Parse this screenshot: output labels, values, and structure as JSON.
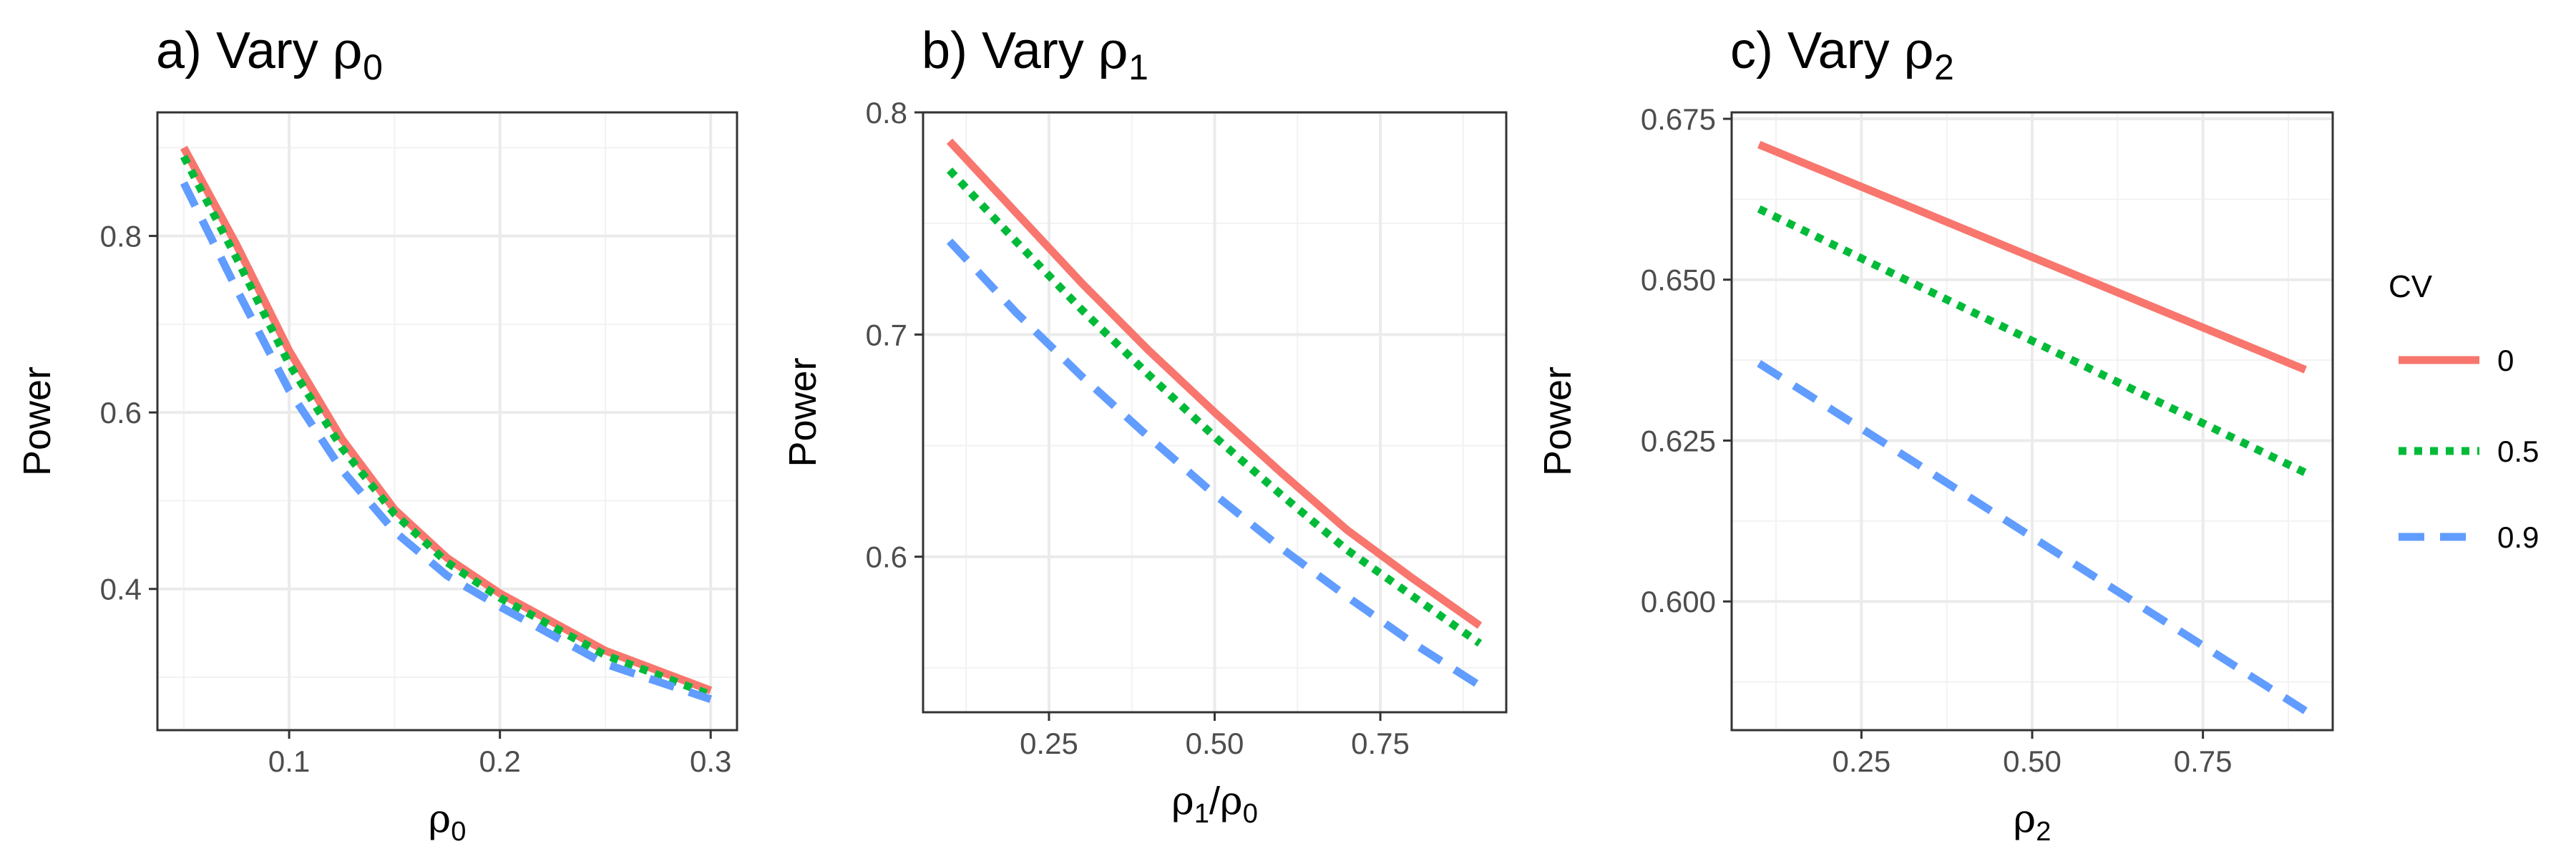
{
  "chart_data": {
    "type": "line",
    "legend": {
      "title": "CV",
      "position": "right",
      "entries": [
        {
          "label": "0",
          "color": "#F8766D",
          "dash": "solid"
        },
        {
          "label": "0.5",
          "color": "#00BA38",
          "dash": "dotted"
        },
        {
          "label": "0.9",
          "color": "#619CFF",
          "dash": "dashed"
        }
      ]
    },
    "panels": [
      {
        "id": "a",
        "title_prefix": "a) Vary ",
        "title_symbol": "ρ",
        "title_sub": "0",
        "ylabel": "Power",
        "xlabel_symbol": "ρ",
        "xlabel_sub": "0",
        "xlim": [
          0.0375,
          0.3125
        ],
        "ylim": [
          0.24,
          0.94
        ],
        "xticks": [
          0.1,
          0.2,
          0.3
        ],
        "xtick_labels": [
          "0.1",
          "0.2",
          "0.3"
        ],
        "yticks": [
          0.4,
          0.6,
          0.8
        ],
        "ytick_labels": [
          "0.4",
          "0.6",
          "0.8"
        ],
        "series": [
          {
            "name": "0",
            "x": [
              0.05,
              0.075,
              0.1,
              0.125,
              0.15,
              0.175,
              0.2,
              0.25,
              0.3
            ],
            "y": [
              0.9,
              0.79,
              0.67,
              0.57,
              0.49,
              0.435,
              0.395,
              0.33,
              0.285
            ]
          },
          {
            "name": "0.5",
            "x": [
              0.05,
              0.075,
              0.1,
              0.125,
              0.15,
              0.175,
              0.2,
              0.25,
              0.3
            ],
            "y": [
              0.89,
              0.775,
              0.655,
              0.56,
              0.485,
              0.43,
              0.39,
              0.325,
              0.28
            ]
          },
          {
            "name": "0.9",
            "x": [
              0.05,
              0.075,
              0.1,
              0.125,
              0.15,
              0.175,
              0.2,
              0.25,
              0.3
            ],
            "y": [
              0.86,
              0.74,
              0.625,
              0.535,
              0.465,
              0.415,
              0.38,
              0.315,
              0.275
            ]
          }
        ]
      },
      {
        "id": "b",
        "title_prefix": "b) Vary ",
        "title_symbol": "ρ",
        "title_sub": "1",
        "ylabel": "Power",
        "xlabel_symbol": "ρ",
        "xlabel_sub": "1",
        "xlabel_sep": "/",
        "xlabel_symbol2": "ρ",
        "xlabel_sub2": "0",
        "xlim": [
          0.06,
          0.94
        ],
        "ylim": [
          0.53,
          0.8
        ],
        "xticks": [
          0.25,
          0.5,
          0.75
        ],
        "xtick_labels": [
          "0.25",
          "0.50",
          "0.75"
        ],
        "yticks": [
          0.6,
          0.7,
          0.8
        ],
        "ytick_labels": [
          "0.6",
          "0.7",
          "0.8"
        ],
        "series": [
          {
            "name": "0",
            "x": [
              0.1,
              0.2,
              0.3,
              0.4,
              0.5,
              0.6,
              0.7,
              0.8,
              0.9
            ],
            "y": [
              0.787,
              0.755,
              0.723,
              0.693,
              0.665,
              0.638,
              0.612,
              0.59,
              0.569
            ]
          },
          {
            "name": "0.5",
            "x": [
              0.1,
              0.2,
              0.3,
              0.4,
              0.5,
              0.6,
              0.7,
              0.8,
              0.9
            ],
            "y": [
              0.774,
              0.742,
              0.711,
              0.682,
              0.654,
              0.628,
              0.603,
              0.582,
              0.561
            ]
          },
          {
            "name": "0.9",
            "x": [
              0.1,
              0.2,
              0.3,
              0.4,
              0.5,
              0.6,
              0.7,
              0.8,
              0.9
            ],
            "y": [
              0.742,
              0.71,
              0.681,
              0.654,
              0.628,
              0.604,
              0.582,
              0.561,
              0.542
            ]
          }
        ]
      },
      {
        "id": "c",
        "title_prefix": "c) Vary ",
        "title_symbol": "ρ",
        "title_sub": "2",
        "ylabel": "Power",
        "xlabel_symbol": "ρ",
        "xlabel_sub": "2",
        "xlim": [
          0.06,
          0.94
        ],
        "ylim": [
          0.58,
          0.676
        ],
        "xticks": [
          0.25,
          0.5,
          0.75
        ],
        "xtick_labels": [
          "0.25",
          "0.50",
          "0.75"
        ],
        "yticks": [
          0.6,
          0.625,
          0.65,
          0.675
        ],
        "ytick_labels": [
          "0.600",
          "0.625",
          "0.650",
          "0.675"
        ],
        "series": [
          {
            "name": "0",
            "x": [
              0.1,
              0.9
            ],
            "y": [
              0.671,
              0.636
            ]
          },
          {
            "name": "0.5",
            "x": [
              0.1,
              0.9
            ],
            "y": [
              0.661,
              0.62
            ]
          },
          {
            "name": "0.9",
            "x": [
              0.1,
              0.9
            ],
            "y": [
              0.637,
              0.583
            ]
          }
        ]
      }
    ]
  }
}
